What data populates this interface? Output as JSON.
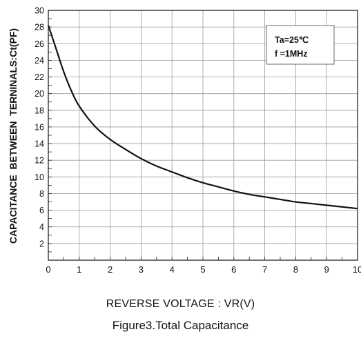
{
  "chart_data": {
    "type": "line",
    "ylabel": "CAPACITANCE  BETWEEN  TERNINALS:Ct(PF)",
    "xlabel": "REVERSE VOLTAGE : VR(V)",
    "caption": "Figure3.Total Capacitance",
    "annotation": [
      "Ta=25℃",
      "f =1MHz"
    ],
    "xlim": [
      0,
      10
    ],
    "ylim": [
      0,
      30
    ],
    "x_ticks": [
      "0",
      "1",
      "2",
      "3",
      "4",
      "5",
      "6",
      "7",
      "8",
      "9",
      "10"
    ],
    "y_ticks": [
      "2",
      "4",
      "6",
      "8",
      "10",
      "12",
      "14",
      "16",
      "18",
      "20",
      "22",
      "24",
      "26",
      "28",
      "30"
    ],
    "grid": true,
    "series": [
      {
        "color": "#111111",
        "x": [
          0,
          0.25,
          0.5,
          0.75,
          1,
          1.5,
          2,
          2.5,
          3,
          3.5,
          4,
          4.5,
          5,
          5.5,
          6,
          6.5,
          7,
          7.5,
          8,
          8.5,
          9,
          9.5,
          10
        ],
        "y": [
          28.2,
          25.4,
          22.6,
          20.3,
          18.5,
          16.1,
          14.5,
          13.3,
          12.2,
          11.3,
          10.6,
          9.9,
          9.3,
          8.8,
          8.3,
          7.9,
          7.6,
          7.3,
          7.0,
          6.8,
          6.6,
          6.4,
          6.2
        ]
      }
    ]
  }
}
